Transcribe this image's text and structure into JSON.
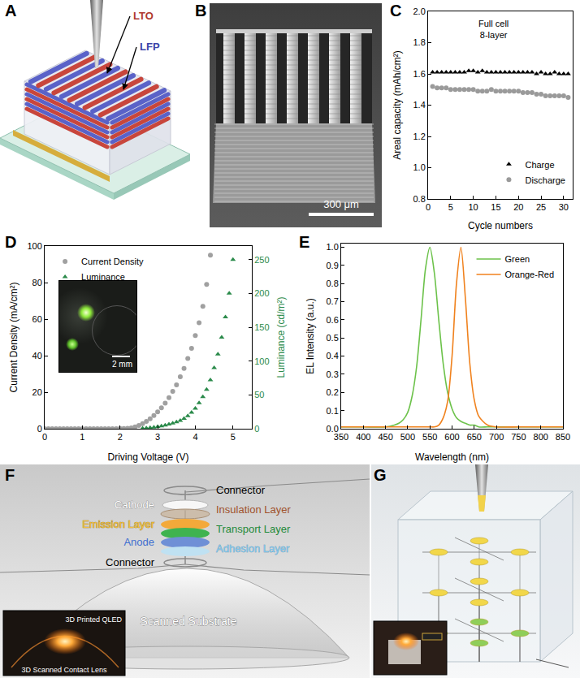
{
  "panel_labels": [
    "A",
    "B",
    "C",
    "D",
    "E",
    "F",
    "G"
  ],
  "diagrams": {
    "A": {
      "labels": [
        "LTO",
        "LFP"
      ]
    },
    "B": {
      "scale_bar": "300 μm"
    },
    "F": {
      "left_labels": [
        "Cathode",
        "Emission Layer",
        "Anode",
        "Connector"
      ],
      "right_labels": [
        "Connector",
        "Insulation Layer",
        "Transport Layer",
        "Adhesion Layer"
      ],
      "substrate": "Scanned Substrate",
      "inset": [
        "3D Printed QLED",
        "3D Scanned Contact Lens"
      ]
    }
  },
  "chart_data": [
    {
      "type": "scatter",
      "x_label": "Cycle numbers",
      "y_label": "Areal capacity (mAh/cm²)",
      "annotations": [
        "Full cell",
        "8-layer"
      ],
      "xlim": [
        0,
        32
      ],
      "xticks": [
        0,
        5,
        10,
        15,
        20,
        25,
        30
      ],
      "ylim": [
        0.8,
        2.0
      ],
      "yticks": [
        0.8,
        {
          "value": 1.0,
          "label": "1.0"
        },
        1.2,
        1.4,
        1.6,
        1.8,
        {
          "value": 2.0,
          "label": "2.0"
        }
      ],
      "grid": false,
      "legend": "lower right",
      "x": [
        1,
        2,
        3,
        4,
        5,
        6,
        7,
        8,
        9,
        10,
        11,
        12,
        13,
        14,
        15,
        16,
        17,
        18,
        19,
        20,
        21,
        22,
        23,
        24,
        25,
        26,
        27,
        28,
        29,
        30,
        31
      ],
      "series": [
        {
          "name": "Charge",
          "color": "#000000",
          "marker": "triangle",
          "values": [
            1.61,
            1.61,
            1.61,
            1.61,
            1.61,
            1.61,
            1.61,
            1.61,
            1.62,
            1.62,
            1.61,
            1.62,
            1.61,
            1.61,
            1.61,
            1.61,
            1.61,
            1.61,
            1.61,
            1.61,
            1.61,
            1.61,
            1.61,
            1.6,
            1.61,
            1.6,
            1.6,
            1.61,
            1.6,
            1.6,
            1.6
          ]
        },
        {
          "name": "Discharge",
          "color": "#9a9a9a",
          "marker": "circle",
          "values": [
            1.52,
            1.51,
            1.51,
            1.51,
            1.5,
            1.5,
            1.5,
            1.5,
            1.5,
            1.5,
            1.49,
            1.49,
            1.49,
            1.5,
            1.49,
            1.49,
            1.49,
            1.49,
            1.49,
            1.49,
            1.48,
            1.48,
            1.48,
            1.47,
            1.47,
            1.46,
            1.46,
            1.46,
            1.46,
            1.46,
            1.45
          ]
        }
      ]
    },
    {
      "type": "scatter",
      "x_label": "Driving Voltage (V)",
      "y_label": "Current Density (mA/cm²)",
      "y2_label": "Luminance (cd/m²)",
      "annotations": [
        "2 mm"
      ],
      "xlim": [
        0,
        5.5
      ],
      "xticks": [
        0,
        1,
        2,
        3,
        4,
        5
      ],
      "ylim": [
        0,
        100
      ],
      "yticks": [
        0,
        20,
        40,
        60,
        80,
        100
      ],
      "y2lim": [
        0,
        270
      ],
      "y2ticks": [
        0,
        50,
        100,
        150,
        200,
        250
      ],
      "grid": false,
      "legend": "upper left",
      "series": [
        {
          "name": "Current Density",
          "color": "#a0a0a0",
          "marker": "circle",
          "x": [
            0,
            0.1,
            0.2,
            0.3,
            0.4,
            0.5,
            0.6,
            0.7,
            0.8,
            0.9,
            1,
            1.1,
            1.2,
            1.3,
            1.4,
            1.5,
            1.6,
            1.7,
            1.8,
            1.9,
            2,
            2.1,
            2.2,
            2.3,
            2.4,
            2.5,
            2.6,
            2.7,
            2.8,
            2.9,
            3,
            3.1,
            3.2,
            3.3,
            3.4,
            3.5,
            3.6,
            3.7,
            3.8,
            3.9,
            4,
            4.1,
            4.2,
            4.3,
            4.4
          ],
          "values": [
            0,
            0,
            0,
            0,
            0,
            0,
            0,
            0,
            0,
            0,
            0,
            0,
            0,
            0,
            0,
            0,
            0,
            0,
            0,
            0,
            0.1,
            0.1,
            0.2,
            0.5,
            1,
            1.8,
            2.8,
            4,
            5.5,
            7.2,
            9.2,
            11.5,
            14,
            17,
            20.5,
            24,
            28.5,
            33,
            38.5,
            44,
            51,
            58,
            67,
            79,
            95
          ]
        },
        {
          "name": "Luminance",
          "color": "#2a8a4a",
          "marker": "triangle",
          "axis": "y2",
          "x": [
            2.6,
            2.7,
            2.8,
            2.9,
            3,
            3.1,
            3.2,
            3.3,
            3.4,
            3.5,
            3.6,
            3.7,
            3.8,
            3.9,
            4,
            4.1,
            4.2,
            4.3,
            4.4,
            4.5,
            4.6,
            4.7,
            4.8,
            4.9,
            5
          ],
          "values": [
            0.5,
            1,
            1.5,
            2,
            3,
            4,
            5,
            6.5,
            8,
            10,
            12,
            15,
            19,
            24,
            30,
            38,
            47,
            58,
            72,
            90,
            110,
            135,
            165,
            200,
            250
          ]
        }
      ]
    },
    {
      "type": "line",
      "x_label": "Wavelength (nm)",
      "y_label": "EL Intensity (a.u.)",
      "xlim": [
        350,
        850
      ],
      "xticks": [
        350,
        400,
        450,
        500,
        550,
        600,
        650,
        700,
        750,
        800,
        850
      ],
      "ylim": [
        0,
        1.02
      ],
      "yticks": [
        {
          "value": 0,
          "label": "0.0"
        },
        0.1,
        0.2,
        0.3,
        0.4,
        0.5,
        0.6,
        0.7,
        0.8,
        0.9,
        {
          "value": 1,
          "label": "1.0"
        }
      ],
      "grid": false,
      "legend": "upper right",
      "x": [
        350,
        400,
        450,
        470,
        480,
        490,
        500,
        510,
        520,
        530,
        540,
        550,
        560,
        570,
        580,
        590,
        600,
        610,
        620,
        630,
        640,
        650,
        660,
        680,
        700,
        750,
        800,
        850
      ],
      "series": [
        {
          "name": "Green",
          "color": "#6cc24a",
          "values": [
            0.01,
            0.01,
            0.01,
            0.02,
            0.03,
            0.05,
            0.09,
            0.18,
            0.34,
            0.6,
            0.88,
            1.0,
            0.86,
            0.6,
            0.36,
            0.2,
            0.11,
            0.06,
            0.04,
            0.03,
            0.02,
            0.02,
            0.01,
            0.01,
            0.01,
            0.01,
            0.01,
            0.01
          ]
        },
        {
          "name": "Orange-Red",
          "color": "#f0821e",
          "values": [
            0.01,
            0.01,
            0.01,
            0.01,
            0.01,
            0.01,
            0.01,
            0.01,
            0.01,
            0.01,
            0.01,
            0.01,
            0.01,
            0.02,
            0.06,
            0.15,
            0.4,
            0.8,
            1.0,
            0.72,
            0.36,
            0.16,
            0.07,
            0.02,
            0.01,
            0.01,
            0.01,
            0.01
          ]
        }
      ]
    }
  ]
}
